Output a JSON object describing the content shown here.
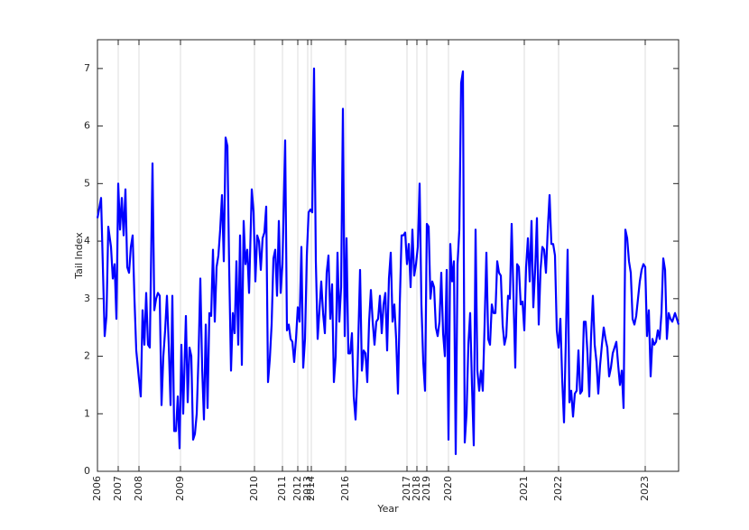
{
  "chart_data": {
    "type": "line",
    "x_label": "Year",
    "y_label": "Tail Index",
    "color": "#0000ff",
    "x": [
      0,
      4,
      8,
      10,
      12,
      15,
      17,
      19,
      21,
      23,
      25,
      27,
      29,
      31,
      33,
      35,
      37,
      39,
      41,
      43,
      46,
      48,
      50,
      52,
      54,
      56,
      58,
      61,
      63,
      65,
      67,
      69,
      71,
      73,
      75,
      77,
      79,
      81,
      83,
      85,
      87,
      89,
      91,
      93,
      95,
      98,
      100,
      102,
      104,
      106,
      108,
      110,
      112,
      114,
      116,
      118,
      120,
      122,
      124,
      126,
      128,
      130,
      132,
      134,
      136,
      138,
      140,
      142,
      144,
      146,
      148,
      150,
      152,
      154,
      156,
      158,
      160,
      162,
      164,
      166,
      168,
      171,
      173,
      175,
      177,
      179,
      181,
      183,
      185,
      187,
      189,
      191,
      193,
      195,
      197,
      199,
      201,
      203,
      205,
      208,
      210,
      212,
      214,
      216,
      218,
      220,
      222,
      224,
      226,
      228,
      230,
      232,
      234,
      236,
      238,
      240,
      242,
      244,
      246,
      248,
      250,
      252,
      254,
      256,
      258,
      260,
      262,
      264,
      266,
      268,
      270,
      272,
      274,
      276,
      278,
      280,
      282,
      284,
      286,
      288,
      291,
      293,
      295,
      297,
      299,
      301,
      303,
      305,
      307,
      309,
      311,
      313,
      315,
      317,
      319,
      321,
      323,
      325,
      327,
      329,
      331,
      333,
      335,
      337,
      339,
      341,
      343,
      345,
      347,
      349,
      351,
      353,
      355,
      357,
      359,
      361,
      363,
      365,
      367,
      369,
      371,
      373,
      375,
      377,
      379,
      381,
      383,
      385,
      387,
      389,
      391,
      393,
      395,
      397,
      399,
      401,
      403,
      405,
      407,
      409,
      411,
      413,
      415,
      417,
      419,
      421,
      423,
      425,
      427,
      429,
      431,
      433,
      435,
      437,
      439,
      441,
      443,
      445,
      447,
      449,
      451,
      453,
      455,
      457,
      459,
      461,
      463,
      465,
      467,
      469,
      471,
      473,
      475,
      477,
      479,
      481,
      483,
      485,
      487,
      489,
      491,
      493,
      495,
      497,
      499,
      501,
      503,
      505,
      507,
      509,
      511,
      513,
      515,
      517,
      519,
      521,
      523,
      525,
      527,
      529,
      531,
      533,
      535,
      537,
      539,
      541,
      543,
      545,
      547,
      549,
      551,
      553,
      555,
      557,
      559,
      561,
      563,
      565,
      567,
      569,
      571,
      573,
      575,
      577,
      579,
      581,
      583,
      585,
      587,
      589,
      591,
      593,
      595,
      597,
      599,
      601,
      603,
      605,
      607,
      609,
      611,
      613,
      615,
      617,
      619,
      621,
      623,
      625,
      627,
      629,
      631,
      633,
      635,
      637,
      640,
      644
    ],
    "values": [
      4.4,
      4.75,
      2.35,
      2.7,
      4.25,
      3.9,
      3.35,
      3.6,
      2.65,
      5.0,
      4.2,
      4.75,
      4.1,
      4.9,
      3.55,
      3.45,
      3.9,
      4.1,
      3.0,
      2.1,
      1.6,
      1.3,
      2.8,
      2.2,
      3.1,
      2.2,
      2.15,
      5.35,
      2.8,
      3.0,
      3.1,
      3.05,
      1.15,
      2.0,
      2.45,
      3.05,
      2.2,
      1.15,
      3.05,
      0.7,
      0.7,
      1.3,
      0.4,
      2.2,
      1.0,
      2.7,
      1.2,
      2.15,
      2.0,
      0.55,
      0.65,
      1.0,
      2.0,
      3.35,
      1.8,
      0.9,
      2.55,
      1.1,
      2.75,
      2.7,
      3.85,
      2.6,
      3.55,
      3.75,
      4.2,
      4.8,
      3.65,
      5.8,
      5.65,
      3.5,
      1.75,
      2.75,
      2.4,
      3.65,
      2.2,
      4.1,
      1.85,
      4.35,
      3.6,
      3.85,
      3.1,
      4.9,
      4.5,
      3.3,
      4.1,
      4.0,
      3.5,
      4.05,
      4.15,
      4.6,
      1.55,
      1.95,
      2.55,
      3.7,
      3.85,
      3.05,
      4.35,
      3.1,
      3.6,
      5.75,
      2.45,
      2.55,
      2.3,
      2.25,
      1.9,
      2.3,
      2.85,
      2.6,
      3.9,
      1.8,
      2.3,
      3.75,
      4.5,
      4.55,
      4.5,
      7.0,
      3.65,
      2.3,
      2.8,
      3.3,
      2.75,
      2.4,
      3.45,
      3.75,
      2.65,
      3.25,
      1.55,
      2.0,
      3.8,
      2.6,
      3.2,
      6.3,
      2.35,
      4.05,
      2.05,
      2.05,
      2.4,
      1.3,
      0.9,
      1.65,
      3.5,
      1.75,
      2.1,
      2.05,
      1.55,
      2.6,
      3.15,
      2.6,
      2.2,
      2.6,
      2.65,
      3.05,
      2.4,
      2.9,
      3.1,
      2.1,
      3.35,
      3.8,
      2.6,
      2.9,
      2.3,
      1.35,
      2.9,
      4.1,
      4.1,
      4.15,
      3.6,
      3.95,
      3.2,
      4.2,
      3.4,
      3.6,
      3.9,
      5.0,
      2.9,
      1.9,
      1.4,
      4.3,
      4.25,
      3.0,
      3.3,
      3.2,
      2.5,
      2.35,
      2.6,
      3.45,
      2.4,
      2.0,
      3.5,
      0.55,
      3.95,
      3.3,
      3.65,
      0.3,
      3.6,
      4.2,
      6.75,
      6.95,
      0.5,
      1.0,
      2.2,
      2.75,
      1.5,
      0.45,
      4.2,
      1.75,
      1.4,
      1.75,
      1.4,
      2.55,
      3.8,
      2.3,
      2.2,
      2.9,
      2.75,
      2.75,
      3.65,
      3.45,
      3.4,
      2.55,
      2.2,
      2.35,
      3.05,
      3.0,
      4.3,
      3.05,
      1.8,
      3.6,
      3.55,
      2.9,
      2.95,
      2.45,
      3.55,
      4.05,
      3.3,
      4.35,
      2.85,
      3.5,
      4.4,
      2.55,
      3.5,
      3.9,
      3.85,
      3.45,
      4.2,
      4.8,
      3.95,
      3.95,
      3.75,
      2.45,
      2.15,
      2.65,
      1.6,
      0.85,
      2.25,
      3.85,
      1.2,
      1.4,
      0.95,
      1.35,
      1.4,
      2.1,
      1.35,
      1.4,
      2.6,
      2.6,
      2.05,
      1.3,
      2.35,
      3.05,
      2.2,
      1.9,
      1.35,
      1.85,
      2.2,
      2.5,
      2.3,
      2.15,
      1.65,
      1.8,
      2.05,
      2.15,
      2.25,
      1.85,
      1.5,
      1.75,
      1.1,
      4.2,
      4.05,
      3.65,
      3.45,
      2.65,
      2.55,
      2.7,
      3.0,
      3.3,
      3.5,
      3.6,
      3.55,
      2.35,
      2.8,
      1.65,
      2.3,
      2.2,
      2.25,
      2.45,
      2.3,
      2.75,
      3.7,
      3.5,
      2.3,
      2.75,
      2.65,
      2.6,
      2.75,
      2.55
    ],
    "xlim": [
      0,
      644
    ],
    "xticks": [
      {
        "value": 0,
        "label": "2006"
      },
      {
        "value": 23,
        "label": "2007"
      },
      {
        "value": 46,
        "label": "2008"
      },
      {
        "value": 92,
        "label": "2009"
      },
      {
        "value": 174,
        "label": "2010"
      },
      {
        "value": 205,
        "label": "2011"
      },
      {
        "value": 222,
        "label": "2012"
      },
      {
        "value": 233,
        "label": "2013"
      },
      {
        "value": 237,
        "label": "2014"
      },
      {
        "value": 275,
        "label": "2016"
      },
      {
        "value": 343,
        "label": "2017"
      },
      {
        "value": 354,
        "label": "2018"
      },
      {
        "value": 365,
        "label": "2019"
      },
      {
        "value": 389,
        "label": "2020"
      },
      {
        "value": 473,
        "label": "2021"
      },
      {
        "value": 511,
        "label": "2022"
      },
      {
        "value": 607,
        "label": "2023"
      }
    ],
    "ylim": [
      0,
      7.5
    ],
    "yticks": [
      0,
      1,
      2,
      3,
      4,
      5,
      6,
      7
    ],
    "grid": "x"
  }
}
